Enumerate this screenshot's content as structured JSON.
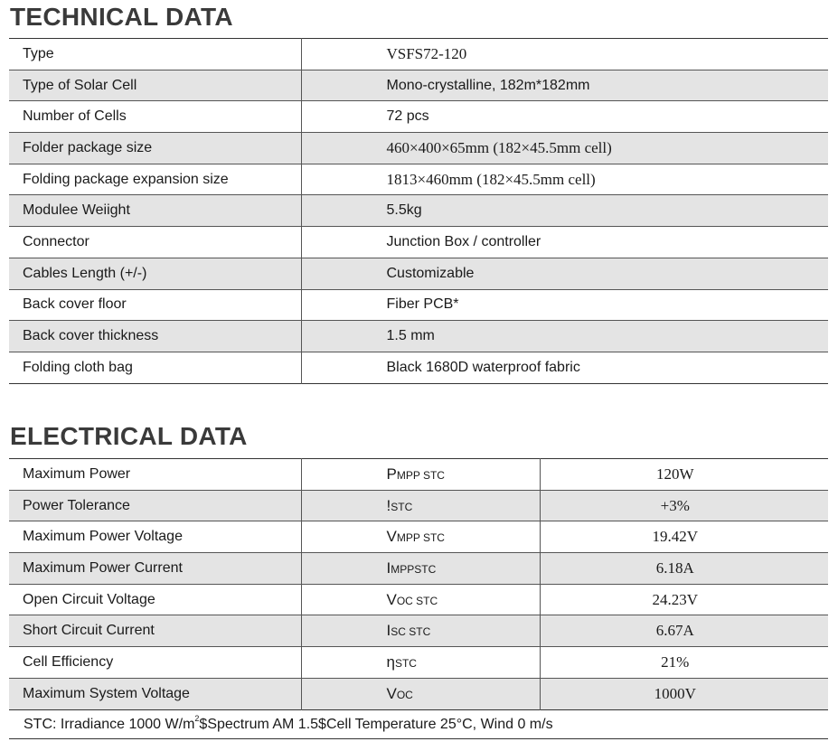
{
  "technical": {
    "title": "TECHNICAL DATA",
    "rows": [
      {
        "label": "Type",
        "value": "VSFS72-120",
        "serif": true
      },
      {
        "label": "Type of Solar Cell",
        "value": "Mono-crystalline, 182m*182mm",
        "serif": false
      },
      {
        "label": "Number of Cells",
        "value": "72 pcs",
        "serif": false
      },
      {
        "label": "Folder package size",
        "value": "460×400×65mm (182×45.5mm cell)",
        "serif": true
      },
      {
        "label": "Folding package expansion size",
        "value": "1813×460mm (182×45.5mm cell)",
        "serif": true
      },
      {
        "label": "Modulee Weiight",
        "value": "5.5kg",
        "serif": false
      },
      {
        "label": "Connector",
        "value": "Junction Box / controller",
        "serif": false
      },
      {
        "label": "Cables Length (+/-)",
        "value": "Customizable",
        "serif": false
      },
      {
        "label": "Back cover floor",
        "value": "Fiber PCB*",
        "serif": false
      },
      {
        "label": "Back cover thickness",
        "value": "1.5 mm",
        "serif": false
      },
      {
        "label": "Folding cloth bag",
        "value": "Black 1680D waterproof fabric",
        "serif": false
      }
    ]
  },
  "electrical": {
    "title": "ELECTRICAL DATA",
    "rows": [
      {
        "label": "Maximum Power",
        "symbol": "P",
        "sub": "MPP STC",
        "value": "120W"
      },
      {
        "label": "Power Tolerance",
        "symbol": "!",
        "sub": "STC",
        "value": "+3%"
      },
      {
        "label": "Maximum Power Voltage",
        "symbol": "V",
        "sub": "MPP STC",
        "value": "19.42V"
      },
      {
        "label": "Maximum Power Current",
        "symbol": "I",
        "sub": "MPPSTC",
        "value": "6.18A"
      },
      {
        "label": "Open Circuit Voltage",
        "symbol": "V",
        "sub": "OC STC",
        "value": "24.23V"
      },
      {
        "label": "Short Circuit Current",
        "symbol": "I",
        "sub": "SC STC",
        "value": "6.67A"
      },
      {
        "label": "Cell Efficiency",
        "symbol": "η",
        "sub": "STC",
        "value": "21%"
      },
      {
        "label": "Maximum System Voltage",
        "symbol": "V",
        "sub": "OC",
        "value": "1000V"
      }
    ]
  },
  "note": {
    "before": "STC: Irradiance 1000 W/m",
    "sup": "2",
    "after": "$Spectrum AM 1.5$Cell Temperature 25°C, Wind 0 m/s"
  }
}
